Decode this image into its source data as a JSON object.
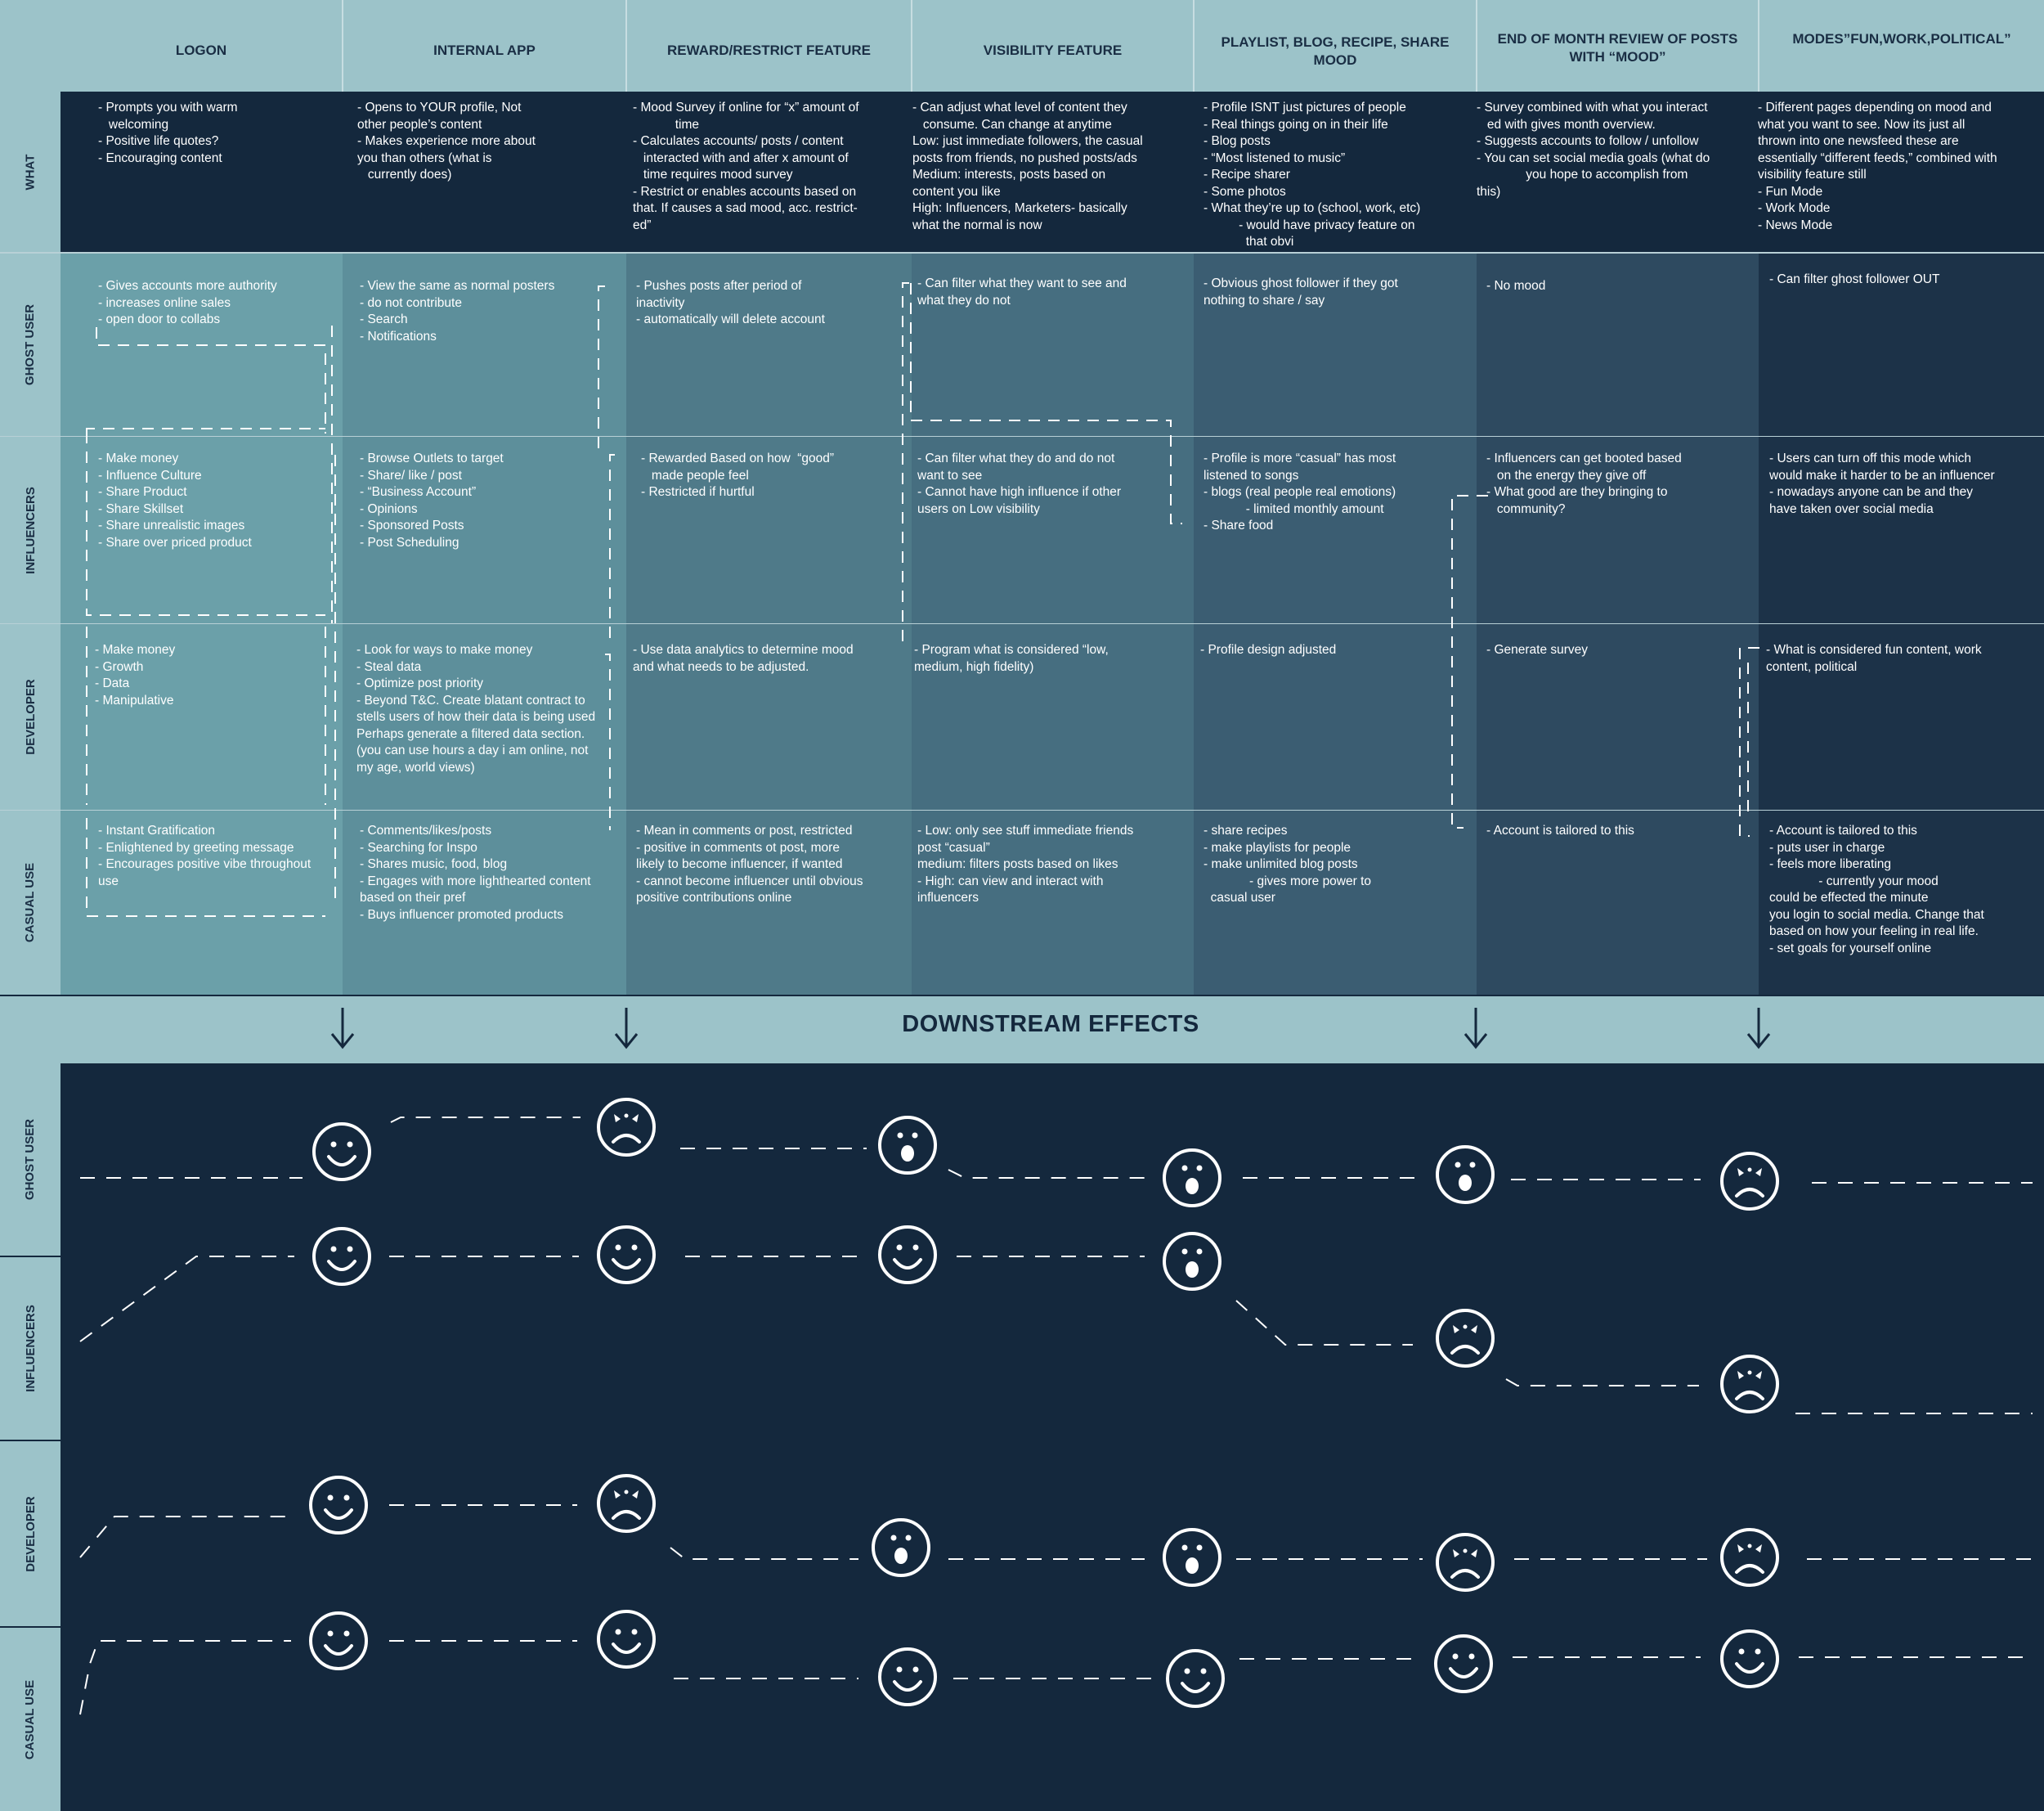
{
  "columns": [
    {
      "key": "logon",
      "label": "LOGON"
    },
    {
      "key": "internal_app",
      "label": "INTERNAL APP"
    },
    {
      "key": "reward",
      "label": "REWARD/RESTRICT FEATURE"
    },
    {
      "key": "visibility",
      "label": "VISIBILITY FEATURE"
    },
    {
      "key": "playlist",
      "label": "PLAYLIST, BLOG, RECIPE, SHARE MOOD"
    },
    {
      "key": "review",
      "label": "END OF MONTH REVIEW OF POSTS WITH “MOOD”"
    },
    {
      "key": "modes",
      "label": "MODES”FUN,WORK,POLITICAL”"
    }
  ],
  "rows": [
    {
      "key": "what",
      "label": "WHAT"
    },
    {
      "key": "ghost",
      "label": "GHOST USER"
    },
    {
      "key": "influencers",
      "label": "INFLUENCERS"
    },
    {
      "key": "developer",
      "label": "DEVELOPER"
    },
    {
      "key": "casual",
      "label": "CASUAL USE"
    }
  ],
  "cells": {
    "what": [
      "- Prompts you with warm\n   welcoming\n- Positive life quotes?\n- Encouraging content",
      "- Opens to YOUR profile, Not\nother people’s content\n- Makes experience more about\nyou than others (what is\n   currently does)",
      "- Mood Survey if online for “x” amount of\n            time\n- Calculates accounts/ posts / content\n   interacted with and after x amount of\n   time requires mood survey\n- Restrict or enables accounts based on\nthat. If causes a sad mood, acc. restrict-\ned”",
      "- Can adjust what level of content they\n   consume. Can change at anytime\nLow: just immediate followers, the casual\nposts from friends, no pushed posts/ads\nMedium: interests, posts based on\ncontent you like\nHigh: Influencers, Marketers- basically\nwhat the normal is now",
      "- Profile ISNT just pictures of people\n- Real things going on in their life\n- Blog posts\n- “Most listened to music”\n- Recipe sharer\n- Some photos\n- What they’re up to (school, work, etc)\n          - would have privacy feature on\n            that obvi",
      "- Survey combined with what you interact\n   ed with gives month overview.\n- Suggests accounts to follow / unfollow\n- You can set social media goals (what do\n              you hope to accomplish from\nthis)",
      "- Different pages depending on mood and\nwhat you want to see. Now its just all\nthrown into one newsfeed these are\nessentially “different feeds,” combined with\nvisibility feature still\n- Fun Mode\n- Work Mode\n- News Mode"
    ],
    "ghost": [
      "- Gives accounts more authority\n- increases online sales\n- open door to collabs",
      "- View the same as normal posters\n- do not contribute\n- Search\n- Notifications",
      "- Pushes posts after period of\ninactivity\n- automatically will delete account",
      "- Can filter what they want to see and\nwhat they do not",
      "- Obvious ghost follower if they got\nnothing to share / say",
      "- No mood",
      "- Can filter ghost follower OUT"
    ],
    "influencers": [
      "- Make money\n- Influence Culture\n- Share Product\n- Share Skillset\n- Share unrealistic images\n- Share over priced product",
      "- Browse Outlets to target\n- Share/ like / post\n- “Business Account”\n- Opinions\n- Sponsored Posts\n- Post Scheduling",
      "- Rewarded Based on how  “good”\n   made people feel\n- Restricted if hurtful",
      "- Can filter what they do and do not\nwant to see\n- Cannot have high influence if other\nusers on Low visibility",
      "- Profile is more “casual” has most\nlistened to songs\n- blogs (real people real emotions)\n            - limited monthly amount\n- Share food",
      "- Influencers can get booted based\n   on the energy they give off\n- What good are they bringing to\n   community?",
      "- Users can turn off this mode which\nwould make it harder to be an influencer\n- nowadays anyone can be and they\nhave taken over social media"
    ],
    "developer": [
      "- Make money\n- Growth\n- Data\n- Manipulative",
      "- Look for ways to make money\n- Steal data\n- Optimize post priority\n- Beyond T&C. Create blatant contract to\nstells users of how their data is being used\nPerhaps generate a filtered data section.\n(you can use hours a day i am online, not\nmy age, world views)",
      "- Use data analytics to determine mood\nand what needs to be adjusted.",
      "- Program what is considered “low,\nmedium, high fidelity)",
      "- Profile design adjusted",
      "- Generate survey",
      "- What is considered fun content, work\ncontent, political"
    ],
    "casual": [
      "- Instant Gratification\n- Enlightened by greeting message\n- Encourages positive vibe throughout\nuse",
      "- Comments/likes/posts\n- Searching for Inspo\n- Shares music, food, blog\n- Engages with more lighthearted content\nbased on their pref\n- Buys influencer promoted products",
      "- Mean in comments or post, restricted\n- positive in comments ot post, more\nlikely to become influencer, if wanted\n- cannot become influencer until obvious\npositive contributions online",
      "- Low: only see stuff immediate friends\npost “casual”\nmedium: filters posts based on likes\n- High: can view and interact with\ninfluencers",
      "- share recipes\n- make playlists for people\n- make unlimited blog posts\n             - gives more power to\n  casual user",
      "- Account is tailored to this",
      "- Account is tailored to this\n- puts user in charge\n- feels more liberating\n              - currently your mood\ncould be effected the minute\nyou login to social media. Change that\nbased on how your feeling in real life.\n- set goals for yourself online"
    ]
  },
  "downstream": {
    "title": "DOWNSTREAM EFFECTS",
    "rows": [
      {
        "key": "ghost",
        "label": "GHOST USER",
        "faces": [
          "happy",
          "sad",
          "surprised",
          "surprised",
          "surprised",
          "sad"
        ]
      },
      {
        "key": "influencers",
        "label": "INFLUENCERS",
        "faces": [
          "happy",
          "happy",
          "happy",
          "surprised",
          "sad",
          "sad"
        ]
      },
      {
        "key": "developer",
        "label": "DEVELOPER",
        "faces": [
          "happy",
          "sad",
          "surprised",
          "surprised",
          "sad",
          "sad"
        ]
      },
      {
        "key": "casual",
        "label": "CASUAL USE",
        "faces": [
          "happy",
          "happy",
          "happy",
          "happy",
          "happy",
          "happy"
        ]
      }
    ]
  },
  "colors": {
    "header": "#9cc3c9",
    "dark": "#14283d",
    "col_bg": [
      "#6ba0a9",
      "#5d8f9b",
      "#4f7a89",
      "#466e80",
      "#3b5d72",
      "#2e4a60",
      "#1c3248"
    ]
  }
}
